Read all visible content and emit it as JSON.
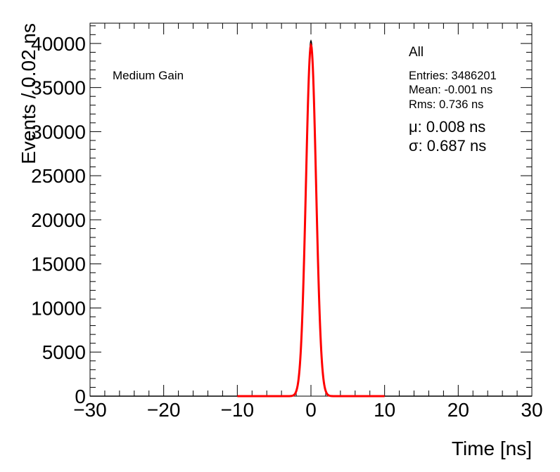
{
  "chart_data": {
    "type": "histogram",
    "xlabel": "Time [ns]",
    "ylabel": "Events / 0.02 ns",
    "xlim": [
      -30,
      30
    ],
    "ylim": [
      0,
      42300
    ],
    "x_ticks": [
      -30,
      -20,
      -10,
      0,
      10,
      20,
      30
    ],
    "x_tick_labels": [
      "−30",
      "−20",
      "−10",
      "0",
      "10",
      "20",
      "30"
    ],
    "y_ticks": [
      0,
      5000,
      10000,
      15000,
      20000,
      25000,
      30000,
      35000,
      40000
    ],
    "y_tick_labels": [
      "0",
      "5000",
      "10000",
      "15000",
      "20000",
      "25000",
      "30000",
      "35000",
      "40000"
    ],
    "grid": false,
    "colors": {
      "histogram": "#000000",
      "fit": "#ff0000",
      "frame": "#000000"
    },
    "annotation": "Medium Gain",
    "stats": {
      "title": "All",
      "entries": "Entries: 3486201",
      "mean": "Mean: -0.001 ns",
      "rms": "Rms: 0.736 ns",
      "mu": "μ: 0.008 ns",
      "sigma": "σ: 0.687 ns"
    },
    "histogram": {
      "bin_width": 0.02,
      "peak_x": 0.0,
      "peak_y": 40300,
      "sigma": 0.687,
      "range": [
        -30,
        30
      ]
    },
    "fit": {
      "function": "gaussian",
      "amplitude": 39800,
      "mean": 0.008,
      "sigma": 0.687,
      "range": [
        -10,
        10
      ]
    }
  }
}
